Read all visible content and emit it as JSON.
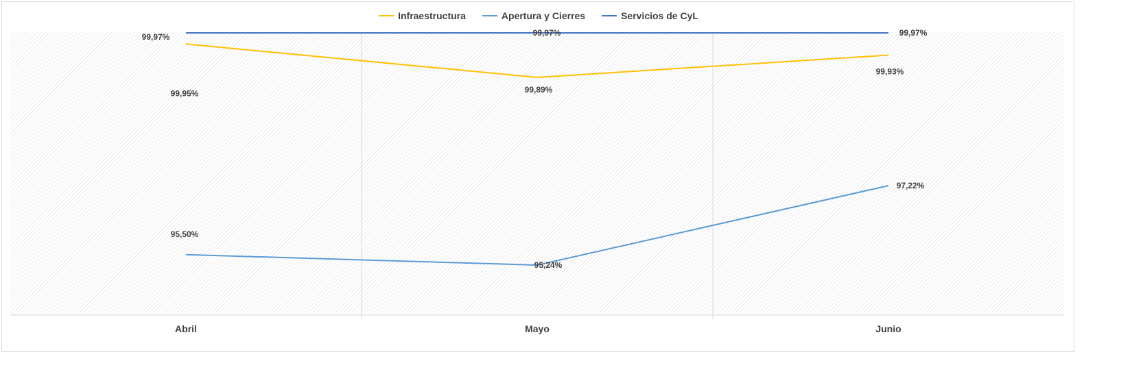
{
  "chart_data": {
    "type": "line",
    "categories": [
      "Abril",
      "Mayo",
      "Junio"
    ],
    "series": [
      {
        "name": "Infraestructura",
        "color": "#FFC000",
        "values": [
          99.95,
          99.89,
          99.93
        ],
        "labels": [
          "99,95%",
          "99,89%",
          "99,93%"
        ]
      },
      {
        "name": "Apertura y Cierres",
        "color": "#5B9BD5",
        "values": [
          95.5,
          95.24,
          97.22
        ],
        "labels": [
          "95,50%",
          "95,24%",
          "97,22%"
        ]
      },
      {
        "name": "Servicios de CyL",
        "color": "#4472C4",
        "values": [
          99.97,
          99.97,
          99.97
        ],
        "labels": [
          "99,97%",
          "99,97%",
          "99,97%"
        ]
      }
    ],
    "title": "",
    "xlabel": "",
    "ylabel": "",
    "legend": "top",
    "grid": "vertical"
  }
}
